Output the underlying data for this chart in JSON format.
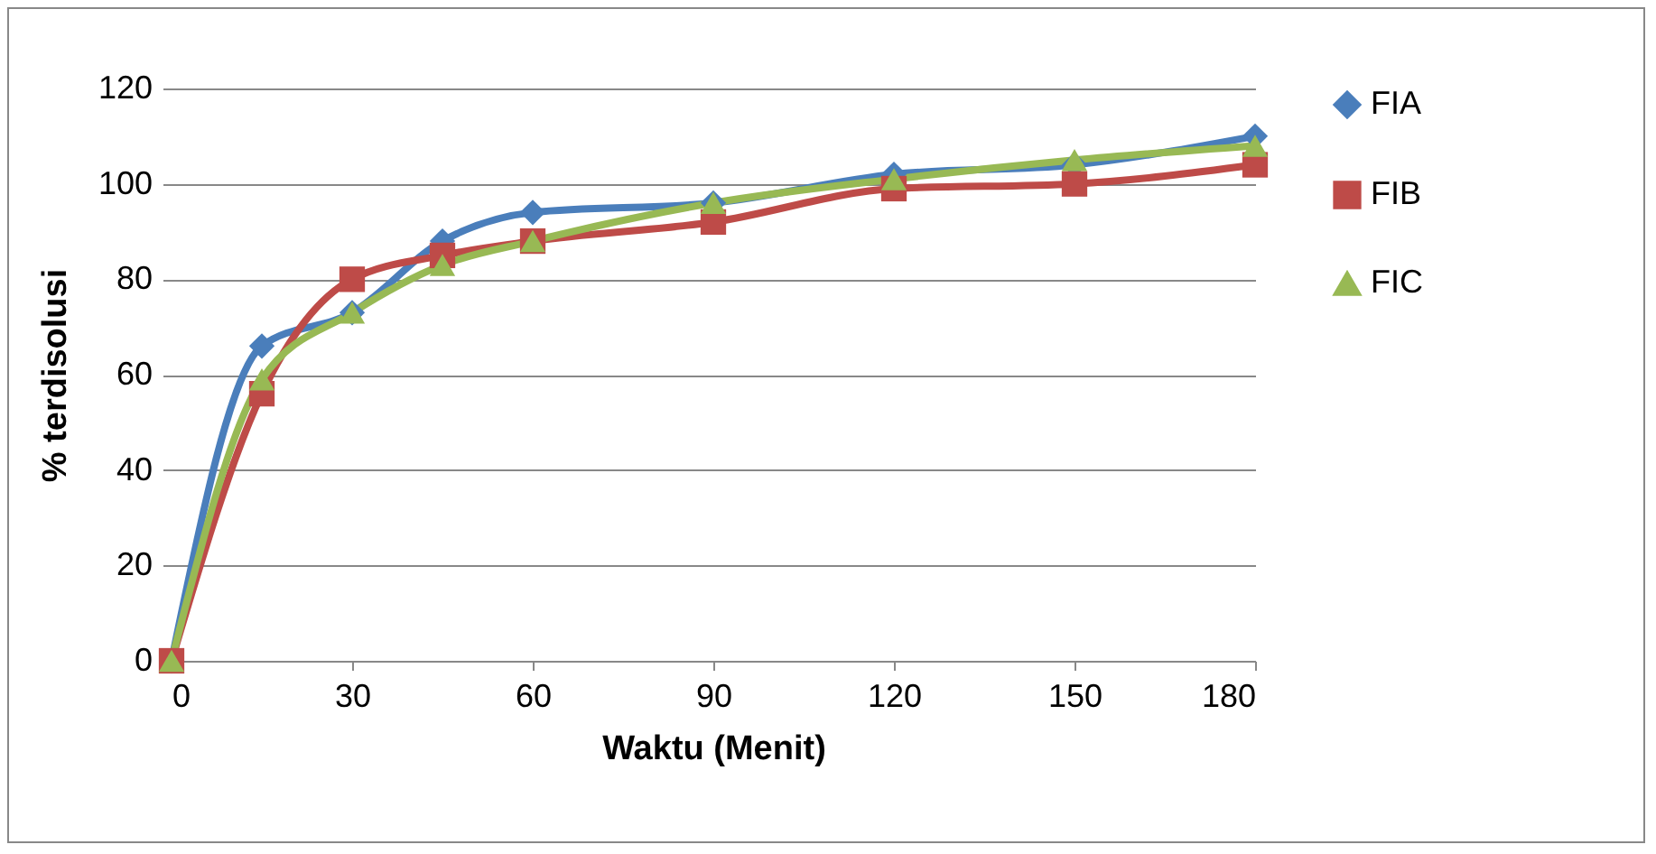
{
  "chart_data": {
    "type": "line",
    "xlabel": "Waktu (Menit)",
    "ylabel": "% terdisolusi",
    "x": [
      0,
      15,
      30,
      45,
      60,
      90,
      120,
      150,
      180
    ],
    "series": [
      {
        "name": "FIA",
        "color": "#4a7ebb",
        "marker": "diamond",
        "values": [
          0,
          66,
          73,
          88,
          94,
          96,
          102,
          104,
          110
        ]
      },
      {
        "name": "FIB",
        "color": "#be4b48",
        "marker": "square",
        "values": [
          0,
          56,
          80,
          85,
          88,
          92,
          99,
          100,
          104
        ]
      },
      {
        "name": "FIC",
        "color": "#98b954",
        "marker": "triangle",
        "values": [
          0,
          59,
          73,
          83,
          88,
          96,
          101,
          105,
          108
        ]
      }
    ],
    "xlim": [
      0,
      180
    ],
    "xticks": [
      0,
      30,
      60,
      90,
      120,
      150,
      180
    ],
    "ylim": [
      0,
      120
    ],
    "yticks": [
      0,
      20,
      40,
      60,
      80,
      100,
      120
    ],
    "grid": "y",
    "legend": "right"
  }
}
